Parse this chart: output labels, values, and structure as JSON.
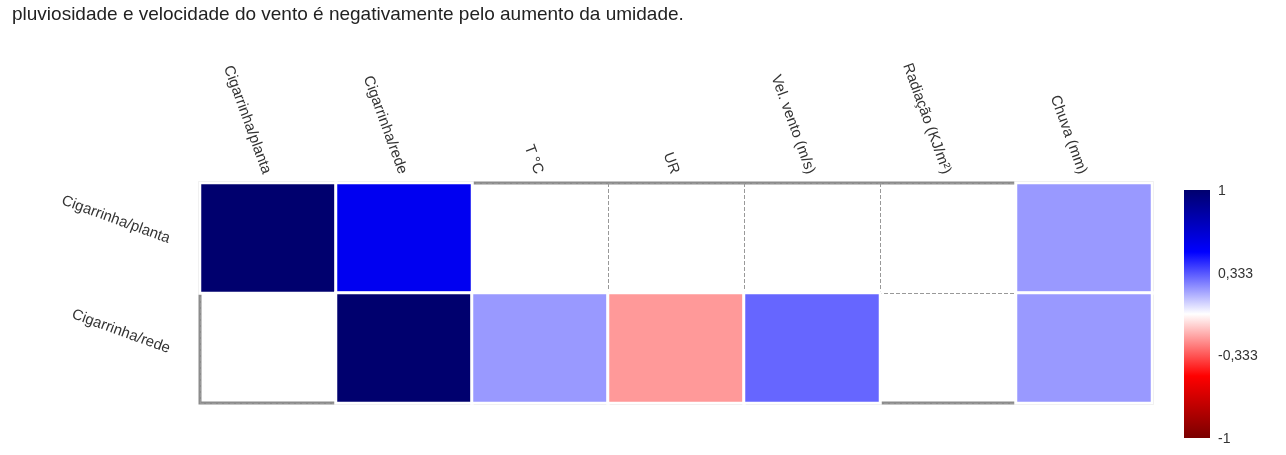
{
  "chart_data": {
    "type": "heatmap",
    "annotations": [
      "pluviosidade e velocidade do vento é negativamente pelo aumento da umidade."
    ],
    "categories": [
      "Cigarrinha/planta",
      "Cigarrinha/rede",
      "T °C",
      "UR",
      "Vel. vento (m/s)",
      "Radiação (KJ/m²)",
      "Chuva (mm)"
    ],
    "y_categories": [
      "Cigarrinha/planta",
      "Cigarrinha/rede"
    ],
    "cells": [
      [
        1,
        0.55,
        null,
        null,
        null,
        null,
        0.2
      ],
      [
        null,
        1,
        0.2,
        -0.2,
        0.3,
        null,
        0.2
      ]
    ],
    "clim": [
      -1,
      1
    ],
    "cticks": [
      {
        "value": 1,
        "label": "1"
      },
      {
        "value": 0.333,
        "label": "0,333"
      },
      {
        "value": -0.333,
        "label": "-0,333"
      },
      {
        "value": -1,
        "label": "-1"
      }
    ],
    "grid": true
  }
}
